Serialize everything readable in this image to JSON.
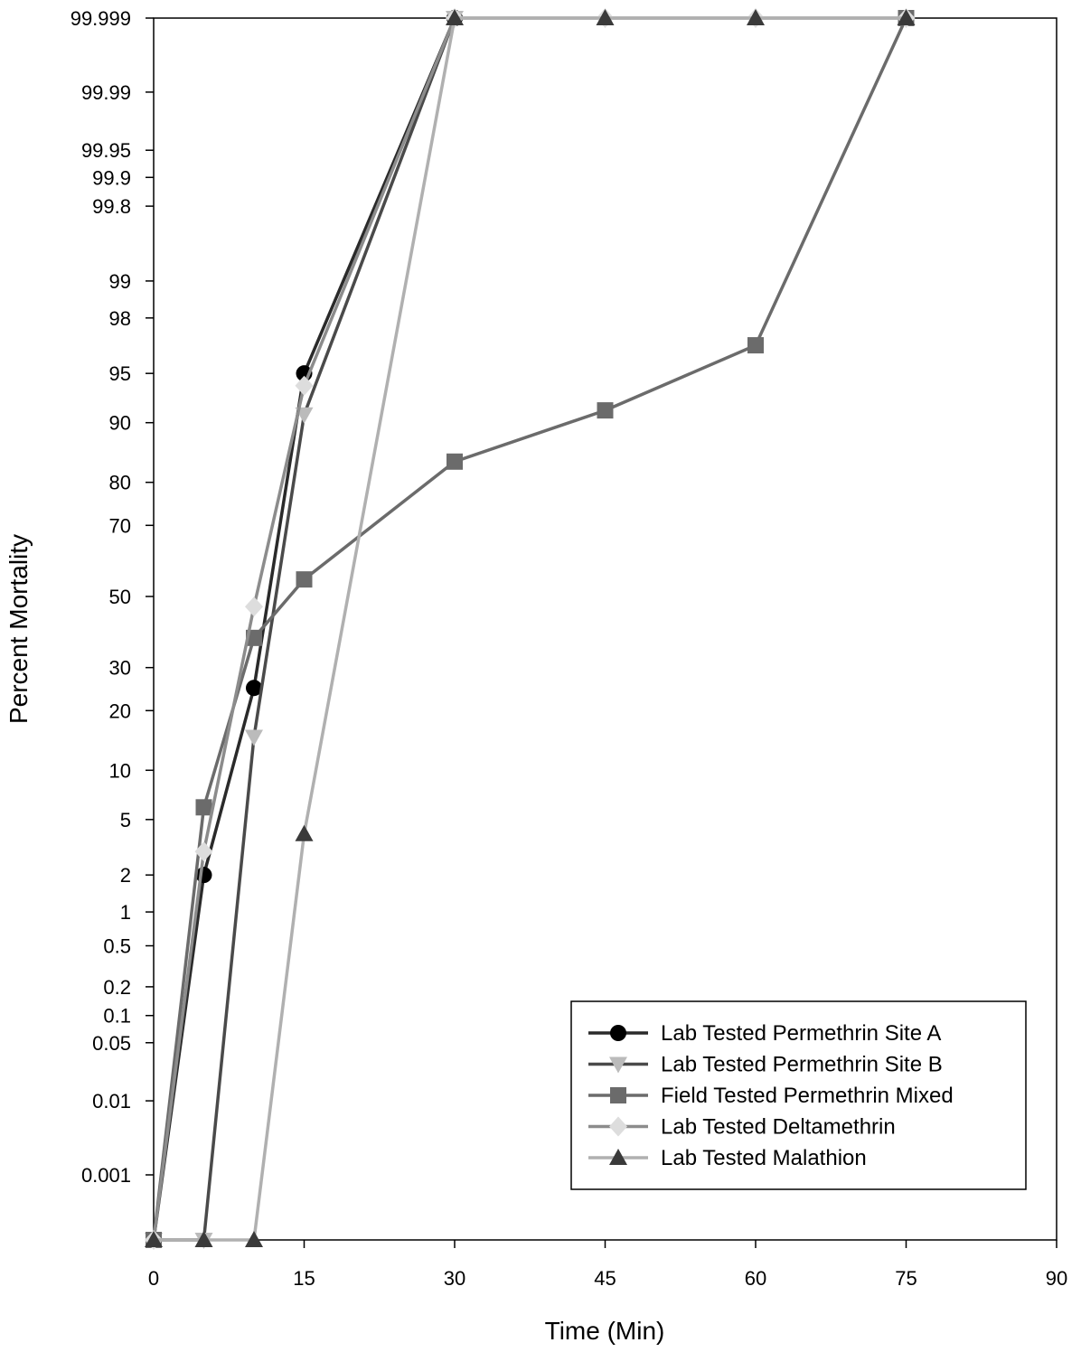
{
  "chart_data": {
    "type": "line",
    "title": "",
    "xlabel": "Time (Min)",
    "ylabel": "Percent Mortality",
    "xlim": [
      0,
      90
    ],
    "x_ticks": [
      0,
      15,
      30,
      45,
      60,
      75,
      90
    ],
    "y_scale": "probit (normal probability)",
    "y_ticks": [
      {
        "label": "99.999",
        "value": 99.999
      },
      {
        "label": "99.99",
        "value": 99.99
      },
      {
        "label": "99.95",
        "value": 99.95
      },
      {
        "label": "99.9",
        "value": 99.9
      },
      {
        "label": "99.8",
        "value": 99.8
      },
      {
        "label": "99",
        "value": 99
      },
      {
        "label": "98",
        "value": 98
      },
      {
        "label": "95",
        "value": 95
      },
      {
        "label": "90",
        "value": 90
      },
      {
        "label": "80",
        "value": 80
      },
      {
        "label": "70",
        "value": 70
      },
      {
        "label": "50",
        "value": 50
      },
      {
        "label": "30",
        "value": 30
      },
      {
        "label": "20",
        "value": 20
      },
      {
        "label": "10",
        "value": 10
      },
      {
        "label": "5",
        "value": 5
      },
      {
        "label": "2",
        "value": 2
      },
      {
        "label": "1",
        "value": 1
      },
      {
        "label": "0.5",
        "value": 0.5
      },
      {
        "label": "0.2",
        "value": 0.2
      },
      {
        "label": "0.1",
        "value": 0.1
      },
      {
        "label": "0.05",
        "value": 0.05
      },
      {
        "label": "0.01",
        "value": 0.01
      },
      {
        "label": "0.001",
        "value": 0.001
      }
    ],
    "grid": false,
    "legend_position": "bottom-right",
    "series": [
      {
        "name": "Lab Tested Permethrin Site A",
        "marker": "circle",
        "color": "#2a2a2a",
        "marker_color": "#000000",
        "x": [
          0,
          5,
          10,
          15,
          30
        ],
        "y": [
          0,
          2,
          25,
          95,
          100
        ]
      },
      {
        "name": "Lab Tested Permethrin Site B",
        "marker": "triangle-down",
        "color": "#4a4a4a",
        "marker_color": "#bbbbbb",
        "x": [
          0,
          5,
          10,
          15,
          30
        ],
        "y": [
          0,
          0,
          15,
          91,
          100
        ]
      },
      {
        "name": "Field Tested Permethrin Mixed",
        "marker": "square",
        "color": "#6b6b6b",
        "marker_color": "#6b6b6b",
        "x": [
          0,
          5,
          10,
          15,
          30,
          45,
          60,
          75
        ],
        "y": [
          0,
          6,
          38,
          55,
          84,
          91.5,
          96.8,
          100
        ]
      },
      {
        "name": "Lab Tested Deltamethrin",
        "marker": "diamond",
        "color": "#8c8c8c",
        "marker_color": "#dddddd",
        "x": [
          0,
          5,
          10,
          15,
          30,
          45,
          60,
          75
        ],
        "y": [
          0,
          3,
          47,
          94,
          100,
          100,
          100,
          100
        ]
      },
      {
        "name": "Lab Tested Malathion",
        "marker": "triangle-up",
        "color": "#b0b0b0",
        "marker_color": "#3a3a3a",
        "x": [
          0,
          5,
          10,
          15,
          30,
          45,
          60,
          75
        ],
        "y": [
          0,
          0,
          0,
          4,
          100,
          100,
          100,
          100
        ]
      }
    ]
  }
}
